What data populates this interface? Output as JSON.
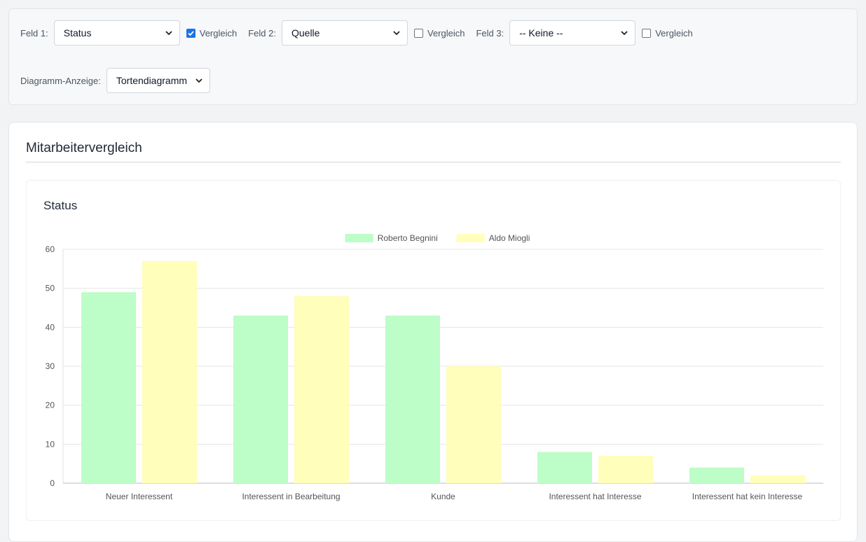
{
  "filters": {
    "field1": {
      "label": "Feld 1:",
      "value": "Status",
      "compare_label": "Vergleich",
      "compare_checked": true
    },
    "field2": {
      "label": "Feld 2:",
      "value": "Quelle",
      "compare_label": "Vergleich",
      "compare_checked": false
    },
    "field3": {
      "label": "Feld 3:",
      "value": "-- Keine --",
      "compare_label": "Vergleich",
      "compare_checked": false
    },
    "display": {
      "label": "Diagramm-Anzeige:",
      "value": "Tortendiagramm"
    }
  },
  "card": {
    "title": "Mitarbeitervergleich"
  },
  "chart_data": {
    "type": "bar",
    "title": "Status",
    "categories": [
      "Neuer Interessent",
      "Interessent in Bearbeitung",
      "Kunde",
      "Interessent hat Interesse",
      "Interessent hat kein Interesse"
    ],
    "series": [
      {
        "name": "Roberto Begnini",
        "values": [
          49,
          43,
          43,
          8,
          4
        ],
        "color": "#bdfdc8"
      },
      {
        "name": "Aldo Miogli",
        "values": [
          57,
          48,
          30,
          7,
          2
        ],
        "color": "#fffebb"
      }
    ],
    "ylim": [
      0,
      60
    ],
    "yticks": [
      0,
      10,
      20,
      30,
      40,
      50,
      60
    ],
    "grid": true,
    "legend": "top-center"
  }
}
